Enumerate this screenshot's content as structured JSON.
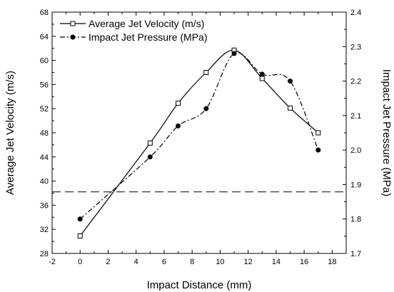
{
  "chart_data": {
    "type": "line",
    "xlabel": "Impact Distance (mm)",
    "ylabel": "Average Jet Velocity (m/s)",
    "y2label": "Impact Jet Pressure (MPa)",
    "xlim": [
      -2,
      19
    ],
    "ylim": [
      28,
      68
    ],
    "y2lim": [
      1.7,
      2.4
    ],
    "x_ticks": [
      -2,
      0,
      2,
      4,
      6,
      8,
      10,
      12,
      14,
      16,
      18
    ],
    "y_ticks": [
      28,
      32,
      36,
      40,
      44,
      48,
      52,
      56,
      60,
      64,
      68
    ],
    "y2_ticks": [
      "1.7",
      "1.8",
      "1.9",
      "2.0",
      "2.1",
      "2.2",
      "2.3",
      "2.4"
    ],
    "legend_position": "top-left",
    "reference_line": {
      "axis": "y",
      "value": 38.2,
      "style": "dashed"
    },
    "series": [
      {
        "name": "Average Jet Velocity (m/s)",
        "axis": "left",
        "marker": "open-square",
        "line_style": "solid",
        "x": [
          0,
          5,
          7,
          9,
          11,
          13,
          15,
          17
        ],
        "y": [
          30.9,
          46.3,
          52.9,
          58.0,
          61.7,
          57.0,
          52.1,
          48.0
        ]
      },
      {
        "name": "Impact Jet Pressure (MPa)",
        "axis": "right",
        "marker": "filled-circle",
        "line_style": "dash-dot",
        "x": [
          0,
          5,
          7,
          9,
          11,
          13,
          15,
          17
        ],
        "y": [
          1.8,
          1.98,
          2.07,
          2.12,
          2.28,
          2.22,
          2.2,
          2.0
        ]
      }
    ]
  }
}
